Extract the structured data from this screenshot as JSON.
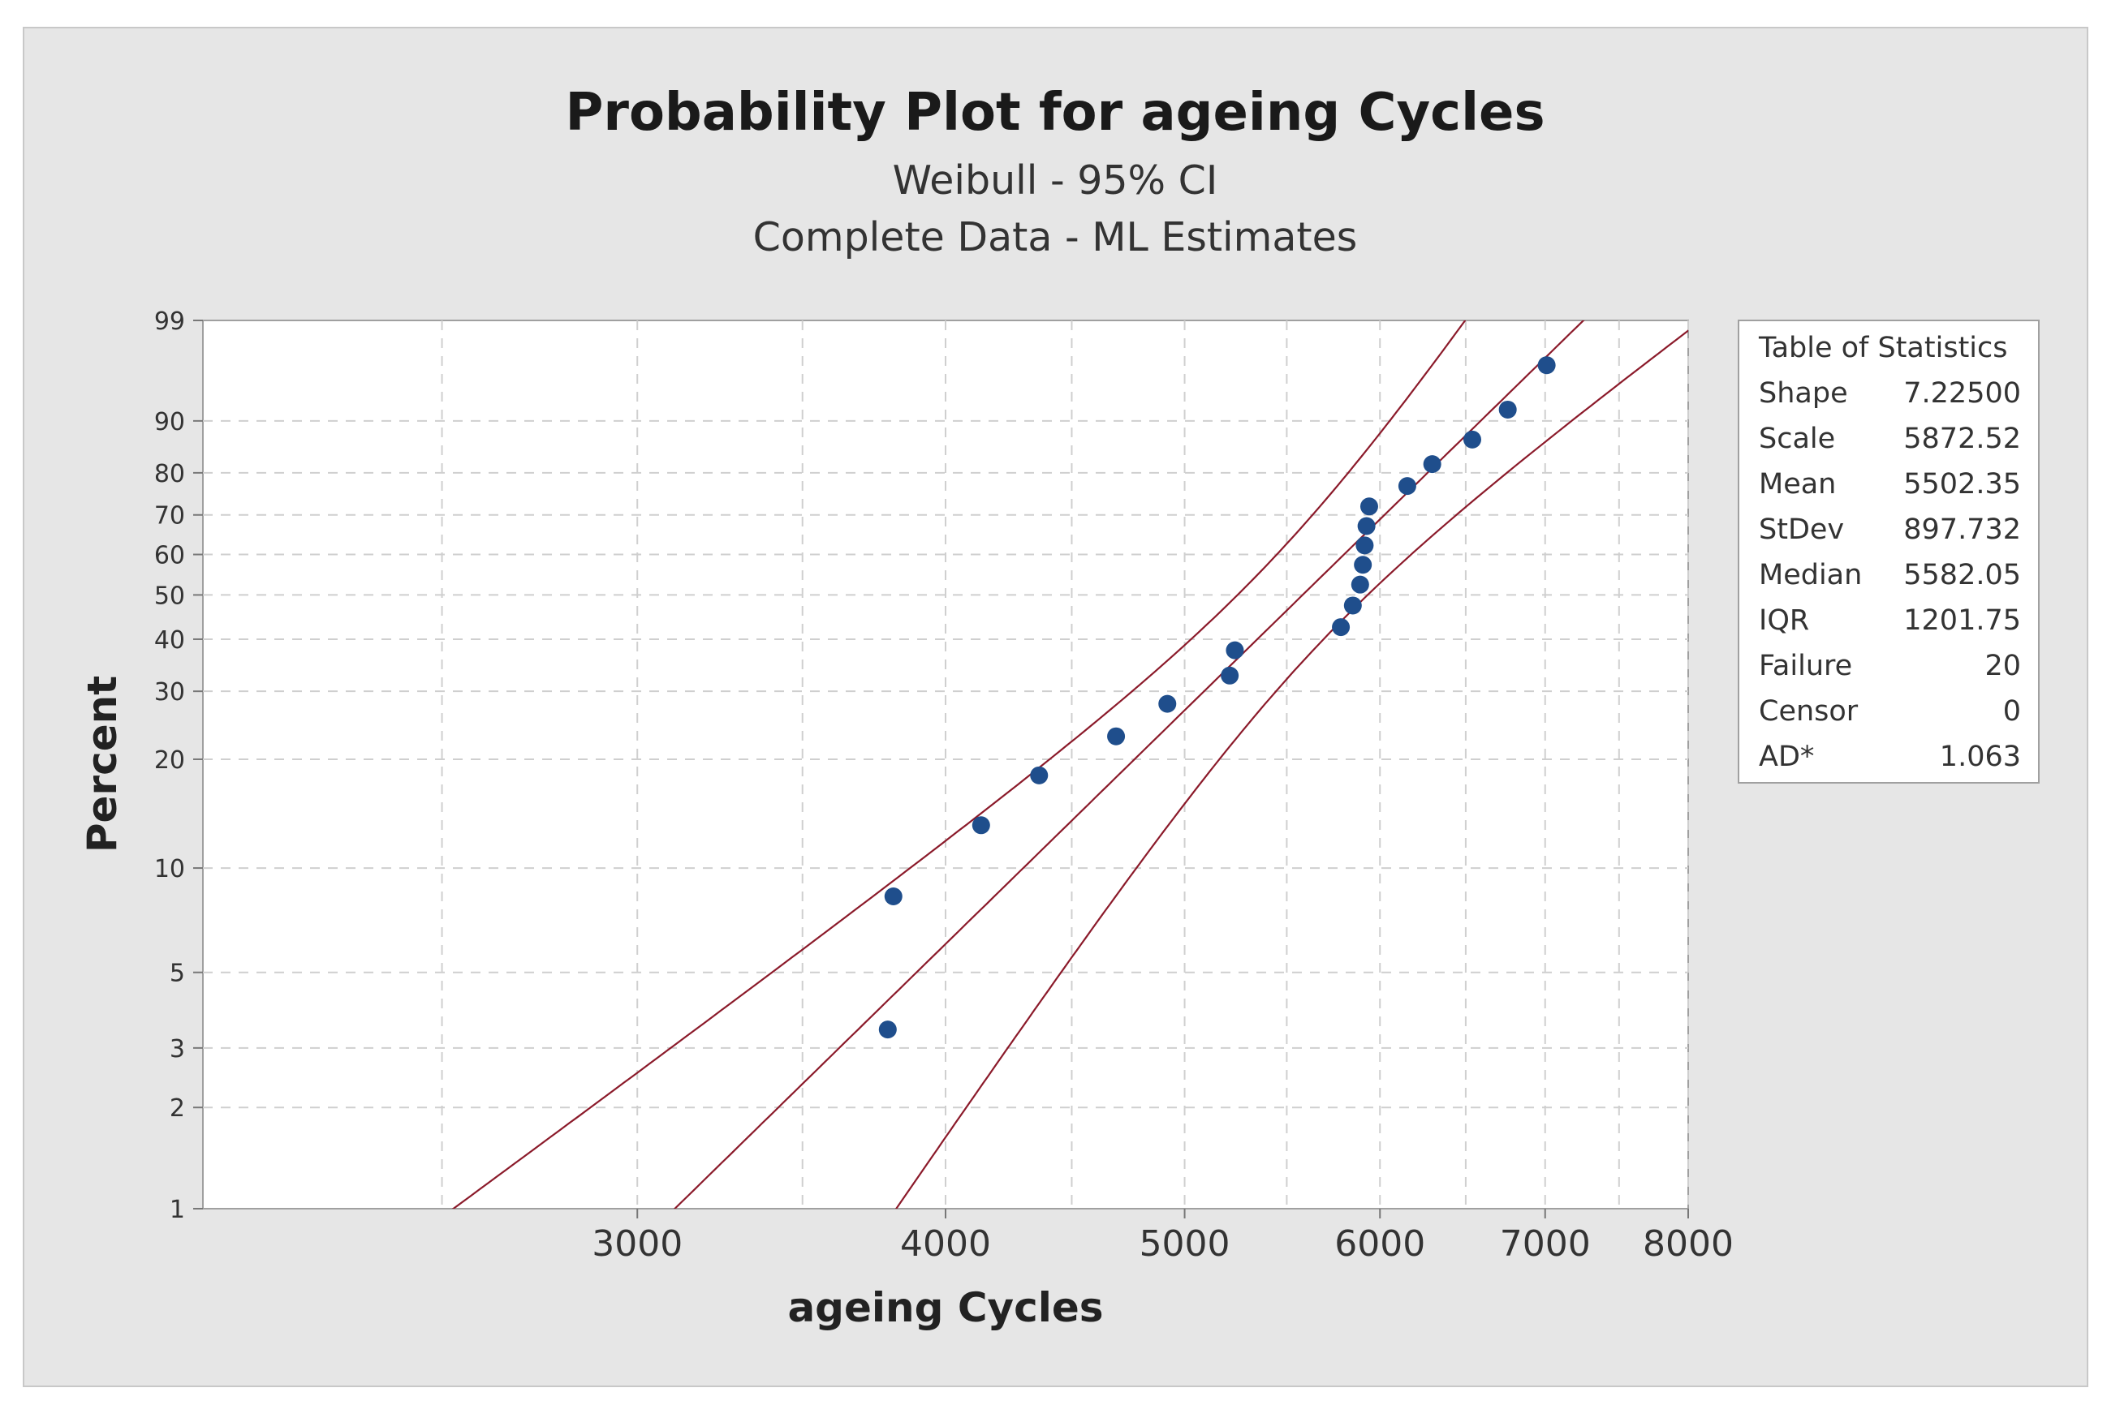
{
  "chart_data": {
    "type": "scatter",
    "title": "Probability Plot for ageing Cycles",
    "subtitle_lines": [
      "Weibull - 95% CI",
      "Complete Data - ML Estimates"
    ],
    "xlabel": "ageing Cycles",
    "ylabel": "Percent",
    "x_scale": "log",
    "y_scale": "weibull",
    "xlim": [
      2000,
      8000
    ],
    "ylim": [
      1,
      99
    ],
    "x_ticks": [
      3000,
      4000,
      5000,
      6000,
      7000,
      8000
    ],
    "x_minor_gridlines": [
      2500,
      3500,
      4500,
      5500,
      6500,
      7500
    ],
    "y_ticks": [
      1,
      2,
      3,
      5,
      10,
      20,
      30,
      40,
      50,
      60,
      70,
      80,
      90,
      99
    ],
    "grid": true,
    "points": [
      {
        "x": 3790,
        "y": 3.4
      },
      {
        "x": 3810,
        "y": 8.3
      },
      {
        "x": 4135,
        "y": 13.2
      },
      {
        "x": 4365,
        "y": 18.1
      },
      {
        "x": 4690,
        "y": 23.0
      },
      {
        "x": 4920,
        "y": 27.9
      },
      {
        "x": 5215,
        "y": 32.8
      },
      {
        "x": 5240,
        "y": 37.7
      },
      {
        "x": 5785,
        "y": 42.6
      },
      {
        "x": 5850,
        "y": 47.5
      },
      {
        "x": 5890,
        "y": 52.5
      },
      {
        "x": 5905,
        "y": 57.4
      },
      {
        "x": 5915,
        "y": 62.3
      },
      {
        "x": 5925,
        "y": 67.2
      },
      {
        "x": 5940,
        "y": 72.1
      },
      {
        "x": 6155,
        "y": 77.0
      },
      {
        "x": 6300,
        "y": 81.9
      },
      {
        "x": 6540,
        "y": 86.8
      },
      {
        "x": 6760,
        "y": 91.7
      },
      {
        "x": 7010,
        "y": 96.6
      }
    ],
    "fit": {
      "shape": 7.225,
      "scale": 5872.52,
      "color": "#8b1a2a"
    },
    "ci_level": 0.95,
    "marker_color": "#1f4e8c",
    "legend_position": "right"
  },
  "stats_table": {
    "title": "Table of Statistics",
    "rows": [
      {
        "label": "Shape",
        "value": "7.22500"
      },
      {
        "label": "Scale",
        "value": "5872.52"
      },
      {
        "label": "Mean",
        "value": "5502.35"
      },
      {
        "label": "StDev",
        "value": "897.732"
      },
      {
        "label": "Median",
        "value": "5582.05"
      },
      {
        "label": "IQR",
        "value": "1201.75"
      },
      {
        "label": "Failure",
        "value": "20"
      },
      {
        "label": "Censor",
        "value": "0"
      },
      {
        "label": "AD*",
        "value": "1.063"
      }
    ]
  }
}
